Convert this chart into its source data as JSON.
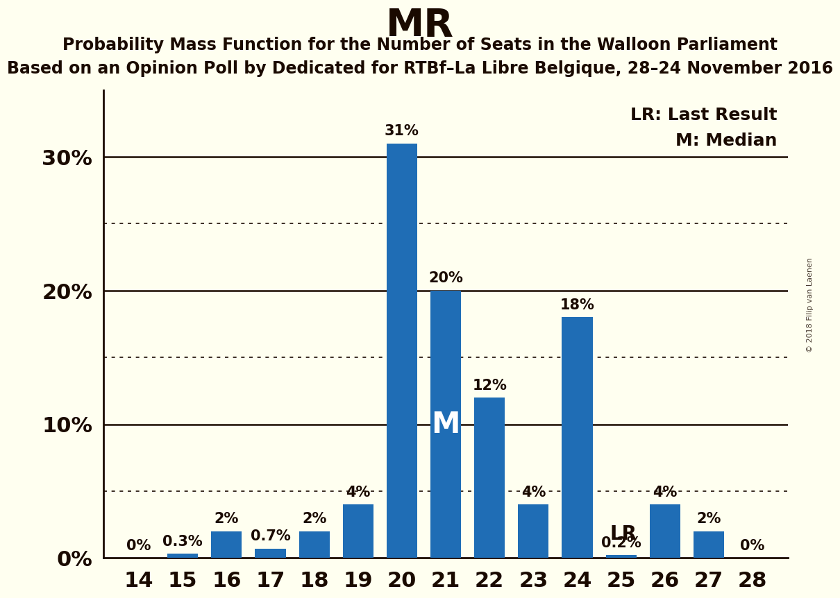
{
  "title": "MR",
  "subtitle1": "Probability Mass Function for the Number of Seats in the Walloon Parliament",
  "subtitle2": "Based on an Opinion Poll by Dedicated for RTBf–La Libre Belgique, 28–24 November 2016",
  "watermark": "© 2018 Filip van Laenen",
  "seats": [
    14,
    15,
    16,
    17,
    18,
    19,
    20,
    21,
    22,
    23,
    24,
    25,
    26,
    27,
    28
  ],
  "probabilities": [
    0.0,
    0.3,
    2.0,
    0.7,
    2.0,
    4.0,
    31.0,
    20.0,
    12.0,
    4.0,
    18.0,
    0.2,
    4.0,
    2.0,
    0.0
  ],
  "bar_color": "#1F6DB5",
  "background_color": "#FFFFF0",
  "text_color": "#1a0a00",
  "median_seat": 21,
  "last_result_seat": 25,
  "legend_lr": "LR: Last Result",
  "legend_m": "M: Median",
  "bar_labels": [
    "0%",
    "0.3%",
    "2%",
    "0.7%",
    "2%",
    "4%",
    "31%",
    "20%",
    "12%",
    "4%",
    "18%",
    "0.2%",
    "4%",
    "2%",
    "0%"
  ],
  "ylim": [
    0,
    35
  ],
  "solid_grid": [
    10,
    20,
    30
  ],
  "dotted_grid": [
    5,
    15,
    25
  ],
  "ytick_labels": [
    "0%",
    "10%",
    "20%",
    "30%"
  ]
}
